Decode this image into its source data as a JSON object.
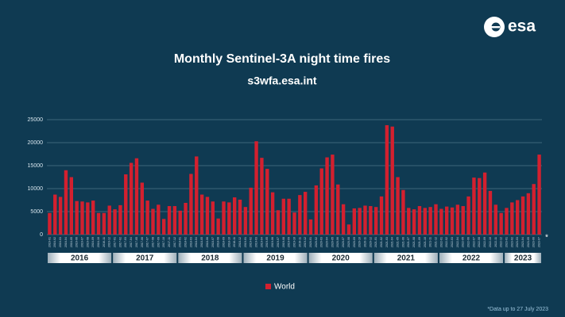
{
  "logo": "esa",
  "chart_data": {
    "type": "bar",
    "title": "Monthly Sentinel-3A night time fires",
    "subtitle": "s3wfa.esa.int",
    "footnote": "*Data up to 27 July 2023",
    "last_marker": "*",
    "years": [
      "2016",
      "2017",
      "2018",
      "2019",
      "2020",
      "2021",
      "2022",
      "2023"
    ],
    "categories": [
      "2016-01",
      "2016-02",
      "2016-03",
      "2016-04",
      "2016-05",
      "2016-06",
      "2016-07",
      "2016-08",
      "2016-09",
      "2016-10",
      "2016-11",
      "2016-12",
      "2017-01",
      "2017-02",
      "2017-03",
      "2017-04",
      "2017-05",
      "2017-06",
      "2017-07",
      "2017-08",
      "2017-09",
      "2017-10",
      "2017-11",
      "2017-12",
      "2018-01",
      "2018-02",
      "2018-03",
      "2018-04",
      "2018-05",
      "2018-06",
      "2018-07",
      "2018-08",
      "2018-09",
      "2018-10",
      "2018-11",
      "2018-12",
      "2019-01",
      "2019-02",
      "2019-03",
      "2019-04",
      "2019-05",
      "2019-06",
      "2019-07",
      "2019-08",
      "2019-09",
      "2019-10",
      "2019-11",
      "2019-12",
      "2020-01",
      "2020-02",
      "2020-03",
      "2020-04",
      "2020-05",
      "2020-06",
      "2020-07",
      "2020-08",
      "2020-09",
      "2020-10",
      "2020-11",
      "2020-12",
      "2021-01",
      "2021-02",
      "2021-03",
      "2021-04",
      "2021-05",
      "2021-06",
      "2021-07",
      "2021-08",
      "2021-09",
      "2021-10",
      "2021-11",
      "2021-12",
      "2022-01",
      "2022-02",
      "2022-03",
      "2022-04",
      "2022-05",
      "2022-06",
      "2022-07",
      "2022-08",
      "2022-09",
      "2022-10",
      "2022-11",
      "2022-12",
      "2023-01",
      "2023-02",
      "2023-03",
      "2023-04",
      "2023-05",
      "2023-06",
      "2023-07"
    ],
    "series": [
      {
        "name": "World",
        "color": "#d3202f",
        "values": [
          4700,
          8700,
          8200,
          14000,
          12500,
          7300,
          7200,
          7000,
          7400,
          4700,
          4700,
          6300,
          5500,
          6400,
          13100,
          15600,
          16600,
          11300,
          7400,
          5600,
          6500,
          3400,
          6200,
          6200,
          5200,
          6900,
          13200,
          17000,
          8700,
          8200,
          7200,
          3500,
          7200,
          7000,
          8100,
          7600,
          6000,
          10200,
          20300,
          16700,
          14300,
          9200,
          5300,
          7800,
          7800,
          4800,
          8600,
          9300,
          3300,
          10700,
          14400,
          16800,
          17400,
          10900,
          6600,
          2200,
          5700,
          5800,
          6300,
          6200,
          6000,
          8300,
          23800,
          23500,
          12500,
          9700,
          5800,
          5500,
          6200,
          5800,
          6000,
          6600,
          5600,
          6100,
          5900,
          6500,
          6200,
          8300,
          12400,
          12300,
          13500,
          9500,
          6500,
          4700,
          5800,
          7000,
          7500,
          8300,
          9000,
          11000,
          17400
        ]
      }
    ],
    "ylim": [
      0,
      25000
    ],
    "yticks": [
      0,
      5000,
      10000,
      15000,
      20000,
      25000
    ],
    "grid": true
  }
}
